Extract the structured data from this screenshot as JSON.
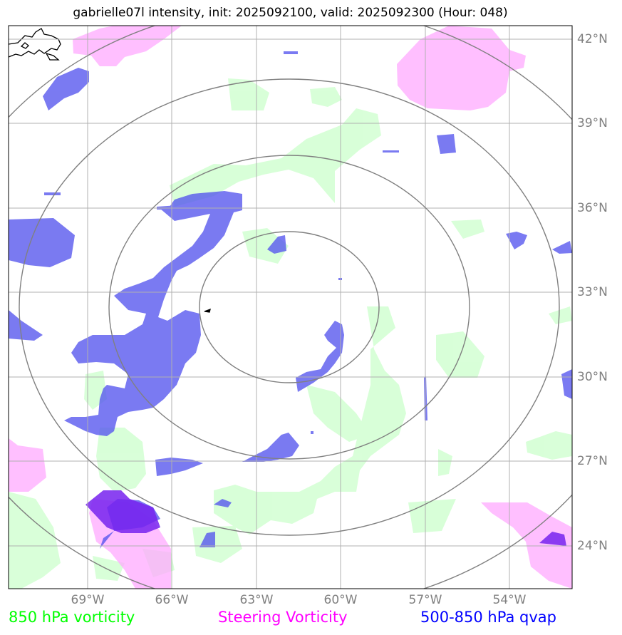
{
  "title": "gabrielle07l intensity, init: 2025092100, valid: 2025092300 (Hour: 048)",
  "axes": {
    "lon_labels": [
      "69°W",
      "66°W",
      "63°W",
      "60°W",
      "57°W",
      "54°W"
    ],
    "lat_labels": [
      "42°N",
      "39°N",
      "36°N",
      "33°N",
      "30°N",
      "27°N",
      "24°N"
    ]
  },
  "legend": [
    {
      "label": "850 hPa vorticity",
      "color": "#00ff00"
    },
    {
      "label": "Steering Vorticity",
      "color": "#ff00ff"
    },
    {
      "label": "500-850 hPa qvap",
      "color": "#0000ff"
    }
  ],
  "colors": {
    "vorticity_850": "#ccffcc",
    "steering_vorticity": "#ffb3ff",
    "qvap": "#5555ee",
    "qvap_strong": "#7722ee",
    "range_rings": "#808080",
    "gridlines": "#b0b0b0",
    "coastline": "#000000"
  }
}
